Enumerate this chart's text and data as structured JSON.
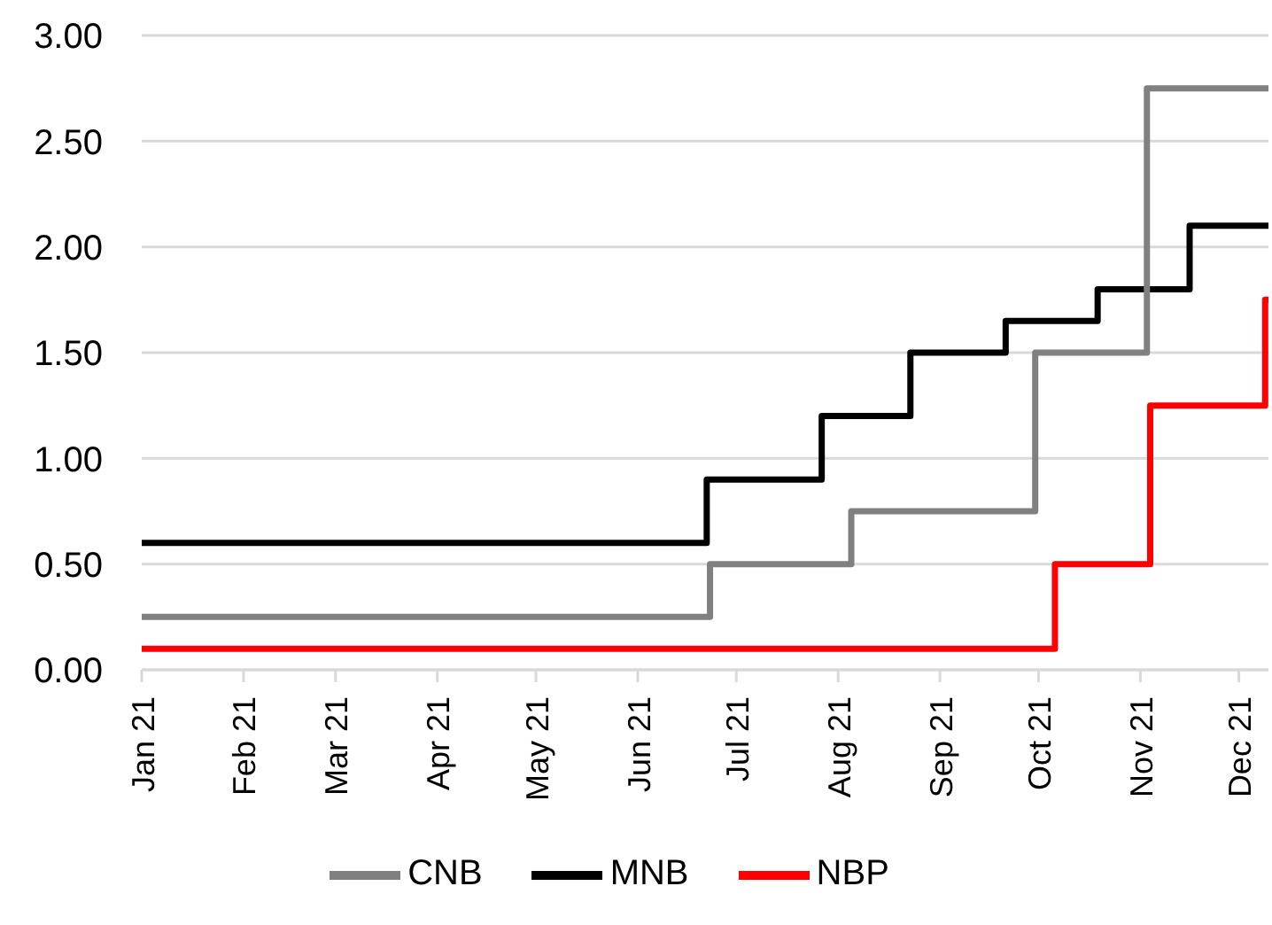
{
  "chart_data": {
    "type": "step",
    "xlim": [
      "2021-01-01",
      "2021-12-10"
    ],
    "xticks": [
      {
        "value": "2021-01-01",
        "label": "Jan 21"
      },
      {
        "value": "2021-02-01",
        "label": "Feb 21"
      },
      {
        "value": "2021-03-01",
        "label": "Mar 21"
      },
      {
        "value": "2021-04-01",
        "label": "Apr 21"
      },
      {
        "value": "2021-05-01",
        "label": "May 21"
      },
      {
        "value": "2021-06-01",
        "label": "Jun 21"
      },
      {
        "value": "2021-07-01",
        "label": "Jul 21"
      },
      {
        "value": "2021-08-01",
        "label": "Aug 21"
      },
      {
        "value": "2021-09-01",
        "label": "Sep 21"
      },
      {
        "value": "2021-10-01",
        "label": "Oct 21"
      },
      {
        "value": "2021-11-01",
        "label": "Nov 21"
      },
      {
        "value": "2021-12-01",
        "label": "Dec 21"
      }
    ],
    "ylim": [
      0,
      3
    ],
    "yticks": [
      {
        "value": 0,
        "label": "0.00"
      },
      {
        "value": 0.5,
        "label": "0.50"
      },
      {
        "value": 1,
        "label": "1.00"
      },
      {
        "value": 1.5,
        "label": "1.50"
      },
      {
        "value": 2,
        "label": "2.00"
      },
      {
        "value": 2.5,
        "label": "2.50"
      },
      {
        "value": 3,
        "label": "3.00"
      }
    ],
    "grid": "y",
    "legend": "bottom",
    "marker": "none",
    "line_style": "solid",
    "series": [
      {
        "name": "NBP",
        "color": "#ff0000",
        "x": [
          "2021-01-01",
          "2021-10-06",
          "2021-11-04",
          "2021-12-09",
          "2021-12-10"
        ],
        "values": [
          0.1,
          0.5,
          1.25,
          1.75,
          1.75
        ]
      },
      {
        "name": "MNB",
        "color": "#000000",
        "x": [
          "2021-01-01",
          "2021-06-22",
          "2021-07-27",
          "2021-08-23",
          "2021-09-21",
          "2021-10-19",
          "2021-11-16",
          "2021-12-10"
        ],
        "values": [
          0.6,
          0.9,
          1.2,
          1.5,
          1.65,
          1.8,
          2.1,
          2.1
        ]
      },
      {
        "name": "CNB",
        "color": "#808080",
        "x": [
          "2021-01-01",
          "2021-06-23",
          "2021-08-05",
          "2021-09-30",
          "2021-11-03",
          "2021-12-10"
        ],
        "values": [
          0.25,
          0.5,
          0.75,
          1.5,
          2.75,
          2.75
        ]
      }
    ]
  }
}
